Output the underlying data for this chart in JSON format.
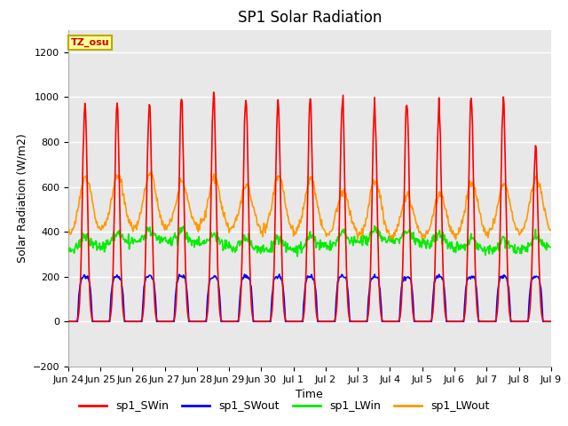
{
  "title": "SP1 Solar Radiation",
  "xlabel": "Time",
  "ylabel": "Solar Radiation (W/m2)",
  "ylim": [
    -200,
    1300
  ],
  "yticks": [
    -200,
    0,
    200,
    400,
    600,
    800,
    1000,
    1200
  ],
  "colors": {
    "sp1_SWin": "#ff0000",
    "sp1_SWout": "#0000ff",
    "sp1_LWin": "#00ee00",
    "sp1_LWout": "#ff9900"
  },
  "line_width": 1.2,
  "fig_bg_color": "#ffffff",
  "plot_bg_color": "#e8e8e8",
  "title_fontsize": 12,
  "label_fontsize": 9,
  "tick_fontsize": 8,
  "annotation_text": "TZ_osu",
  "annotation_bg": "#ffff99",
  "annotation_border": "#bbaa00",
  "tick_labels": [
    "Jun 24",
    "Jun 25",
    "Jun 26",
    "Jun 27",
    "Jun 28",
    "Jun 29",
    "Jun 30",
    "Jul 1",
    "Jul 2",
    "Jul 3",
    "Jul 4",
    "Jul 5",
    "Jul 6",
    "Jul 7",
    "Jul 8",
    "Jul 9"
  ]
}
